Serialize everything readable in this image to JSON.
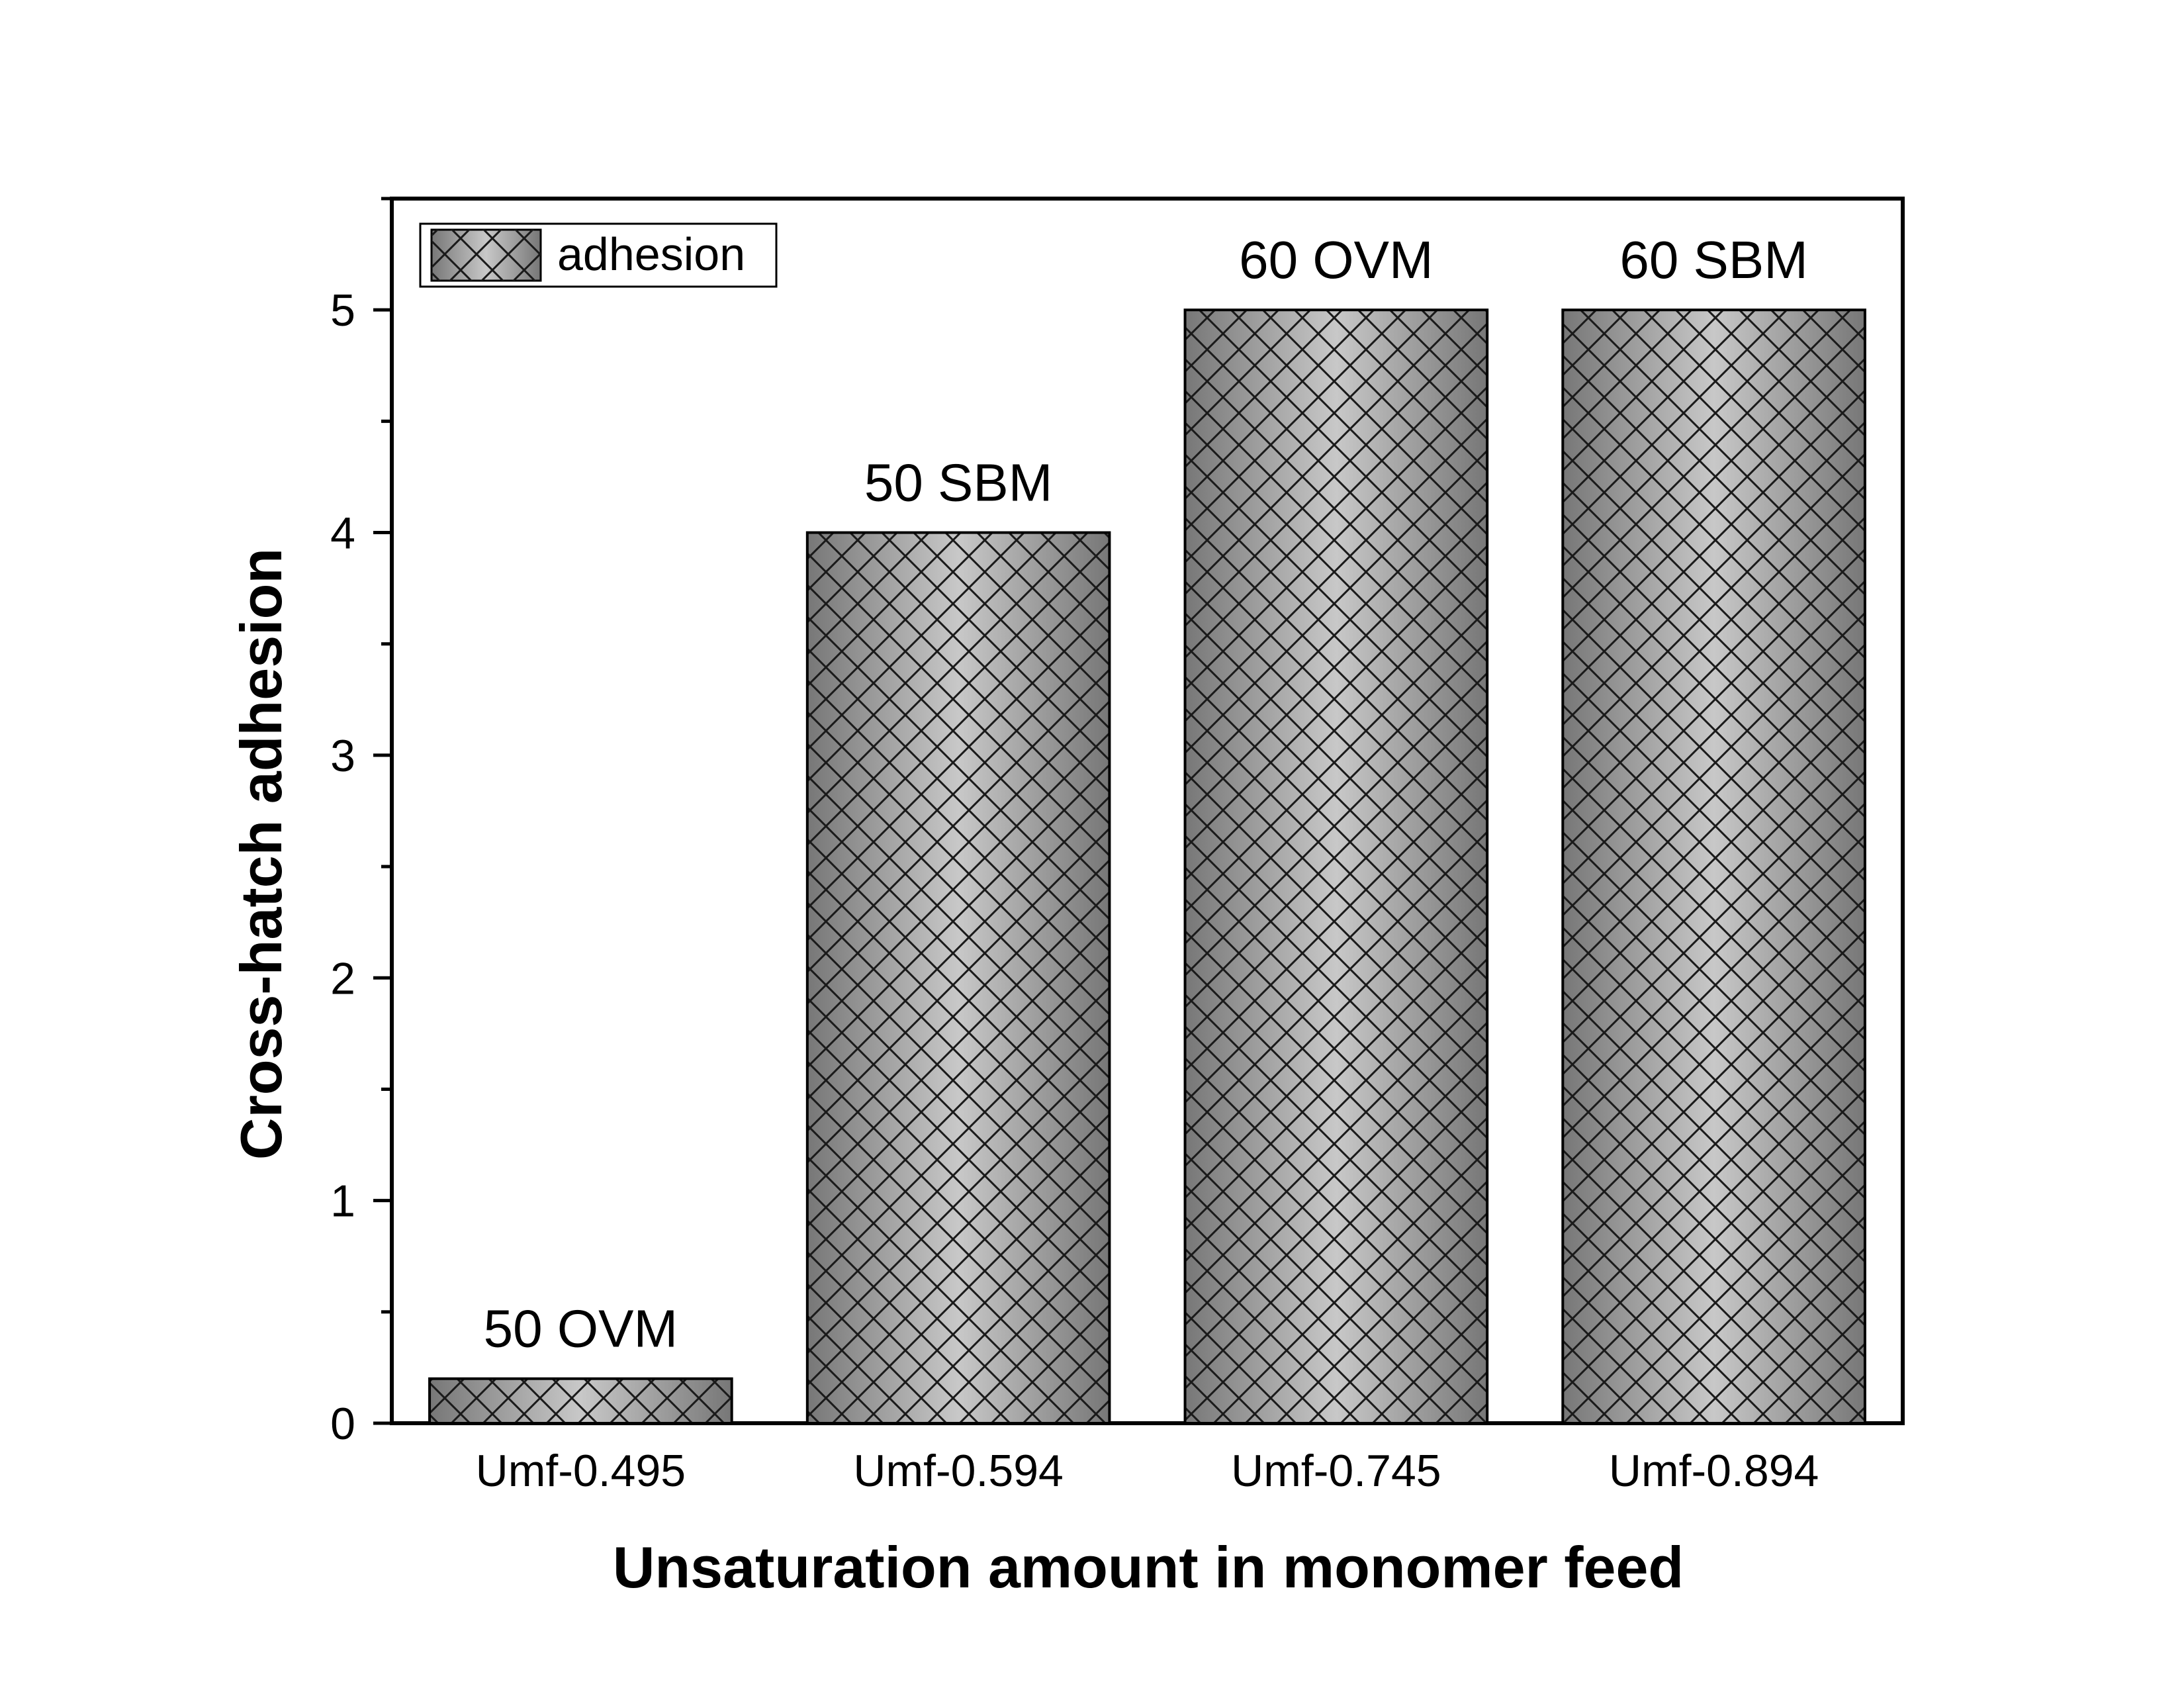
{
  "chart_data": {
    "type": "bar",
    "categories": [
      "Umf-0.495",
      "Umf-0.594",
      "Umf-0.745",
      "Umf-0.894"
    ],
    "series": [
      {
        "name": "adhesion",
        "values": [
          0.2,
          4,
          5,
          5
        ]
      }
    ],
    "bar_labels": [
      "50 OVM",
      "50 SBM",
      "60 OVM",
      "60 SBM"
    ],
    "xlabel": "Unsaturation amount in monomer feed",
    "ylabel": "Cross-hatch adhesion",
    "ylim": [
      0,
      5.5
    ],
    "yticks": [
      "0",
      "1",
      "2",
      "3",
      "4",
      "5"
    ],
    "legend_position": "top-left",
    "grid": false,
    "bar_pattern": "cross-hatch",
    "colors": {
      "bar_dark": "#7a7a7a",
      "bar_light": "#c4c4c4",
      "hatch": "#1a1a1a",
      "axis": "#000000"
    }
  }
}
